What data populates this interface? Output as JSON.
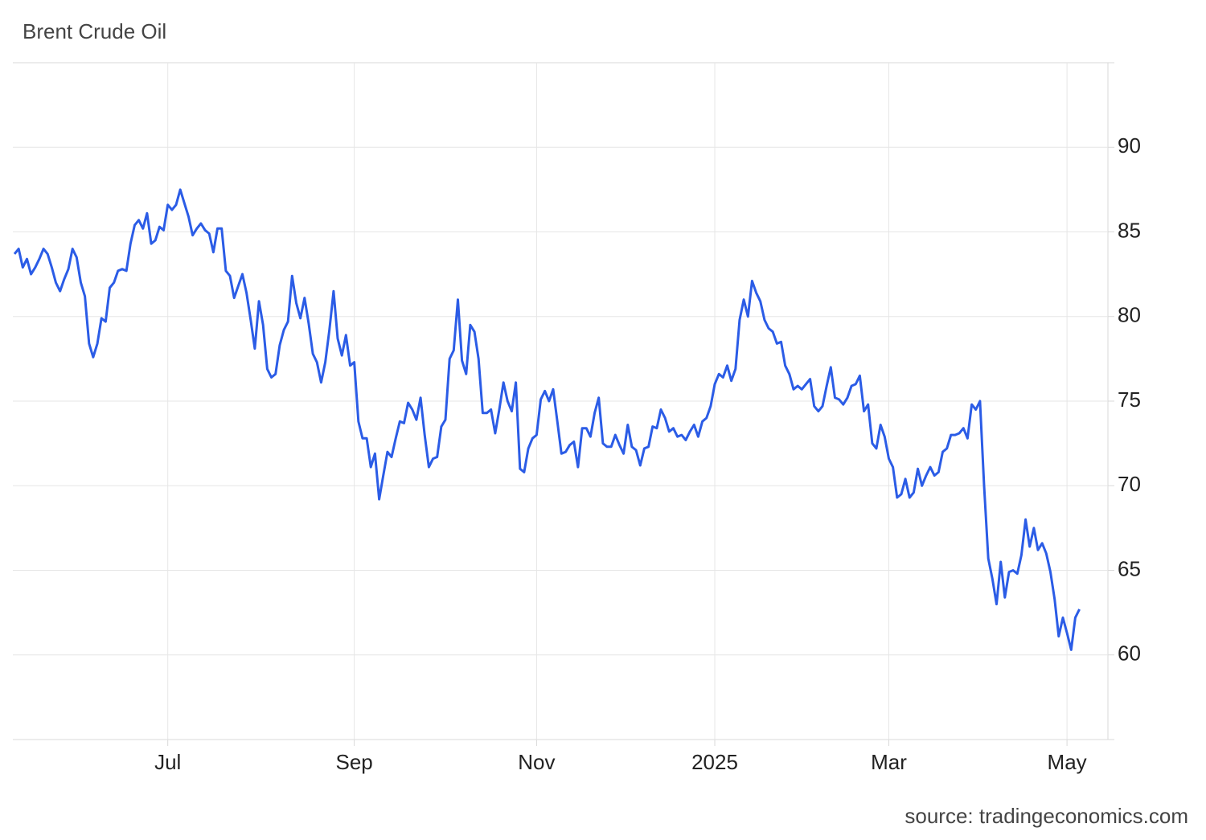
{
  "chart_data": {
    "type": "line",
    "title": "Brent Crude Oil",
    "source": "source: tradingeconomics.com",
    "color": "#2b5ce6",
    "grid": true,
    "ylim": [
      55,
      95
    ],
    "yticks": [
      60,
      65,
      70,
      75,
      80,
      85,
      90
    ],
    "categories": [
      null,
      null,
      null,
      null,
      null,
      null,
      null,
      null,
      null,
      null,
      null,
      null,
      null,
      null,
      null,
      null,
      null,
      null,
      null,
      null,
      null,
      null,
      null,
      null,
      null,
      null,
      null,
      null,
      null,
      null,
      null,
      null,
      null,
      null,
      null,
      null,
      null,
      "Jul",
      null,
      null,
      null,
      null,
      null,
      null,
      null,
      null,
      null,
      null,
      null,
      null,
      null,
      null,
      null,
      null,
      null,
      null,
      null,
      null,
      null,
      null,
      null,
      null,
      null,
      null,
      null,
      null,
      null,
      null,
      null,
      null,
      null,
      null,
      null,
      null,
      null,
      null,
      null,
      null,
      null,
      null,
      null,
      null,
      "Sep",
      null,
      null,
      null,
      null,
      null,
      null,
      null,
      null,
      null,
      null,
      null,
      null,
      null,
      null,
      null,
      null,
      null,
      null,
      null,
      null,
      null,
      null,
      null,
      null,
      null,
      null,
      null,
      null,
      null,
      null,
      null,
      null,
      null,
      null,
      null,
      null,
      null,
      null,
      null,
      null,
      null,
      null,
      null,
      "Nov",
      null,
      null,
      null,
      null,
      null,
      null,
      null,
      null,
      null,
      null,
      null,
      null,
      null,
      null,
      null,
      null,
      null,
      null,
      null,
      null,
      null,
      null,
      null,
      null,
      null,
      null,
      null,
      null,
      null,
      null,
      null,
      null,
      null,
      null,
      null,
      null,
      null,
      null,
      null,
      null,
      null,
      null,
      "2025",
      null,
      null,
      null,
      null,
      null,
      null,
      null,
      null,
      null,
      null,
      null,
      null,
      null,
      null,
      null,
      null,
      null,
      null,
      null,
      null,
      null,
      null,
      null,
      null,
      null,
      null,
      null,
      null,
      null,
      null,
      null,
      null,
      null,
      null,
      null,
      null,
      null,
      null,
      null,
      null,
      null,
      "Mar",
      null,
      null,
      null,
      null,
      null,
      null,
      null,
      null,
      null,
      null,
      null,
      null,
      null,
      null,
      null,
      null,
      null,
      null,
      null,
      null,
      null,
      null,
      null,
      null,
      null,
      null,
      null,
      null,
      null,
      null,
      null,
      null,
      null,
      null,
      null,
      null,
      null,
      null,
      null,
      null,
      null,
      null,
      "May",
      null,
      null,
      null
    ],
    "values": [
      83.7,
      84.0,
      82.9,
      83.4,
      82.5,
      82.9,
      83.4,
      84.0,
      83.7,
      82.9,
      82.0,
      81.5,
      82.2,
      82.8,
      84.0,
      83.5,
      82.0,
      81.2,
      78.4,
      77.6,
      78.4,
      79.9,
      79.7,
      81.7,
      82.0,
      82.7,
      82.8,
      82.7,
      84.3,
      85.4,
      85.7,
      85.2,
      86.1,
      84.3,
      84.5,
      85.3,
      85.1,
      86.6,
      86.3,
      86.6,
      87.5,
      86.7,
      85.9,
      84.8,
      85.2,
      85.5,
      85.1,
      84.9,
      83.8,
      85.2,
      85.2,
      82.7,
      82.4,
      81.1,
      81.8,
      82.5,
      81.4,
      79.8,
      78.1,
      80.9,
      79.5,
      76.9,
      76.4,
      76.6,
      78.3,
      79.2,
      79.7,
      82.4,
      80.8,
      79.9,
      81.1,
      79.6,
      77.8,
      77.3,
      76.1,
      77.3,
      79.2,
      81.5,
      78.7,
      77.7,
      78.9,
      77.1,
      77.3,
      73.8,
      72.8,
      72.8,
      71.1,
      71.9,
      69.2,
      70.6,
      72.0,
      71.7,
      72.8,
      73.8,
      73.7,
      74.9,
      74.5,
      73.9,
      75.2,
      73.0,
      71.1,
      71.6,
      71.7,
      73.5,
      73.9,
      77.5,
      78.0,
      81.0,
      77.4,
      76.6,
      79.5,
      79.1,
      77.5,
      74.3,
      74.3,
      74.5,
      73.1,
      74.5,
      76.1,
      75.0,
      74.4,
      76.1,
      71.0,
      70.8,
      72.2,
      72.8,
      73.0,
      75.1,
      75.6,
      75.0,
      75.7,
      73.8,
      71.9,
      72.0,
      72.4,
      72.6,
      71.1,
      73.4,
      73.4,
      72.9,
      74.3,
      75.2,
      72.5,
      72.3,
      72.3,
      73.0,
      72.4,
      71.9,
      73.6,
      72.3,
      72.1,
      71.2,
      72.2,
      72.3,
      73.5,
      73.4,
      74.5,
      74.0,
      73.2,
      73.4,
      72.9,
      73.0,
      72.7,
      73.2,
      73.6,
      72.9,
      73.8,
      74.0,
      74.7,
      76.0,
      76.6,
      76.4,
      77.1,
      76.2,
      76.9,
      79.8,
      81.0,
      80.0,
      82.1,
      81.4,
      80.9,
      79.8,
      79.3,
      79.1,
      78.4,
      78.5,
      77.1,
      76.6,
      75.7,
      75.9,
      75.7,
      76.0,
      76.3,
      74.7,
      74.4,
      74.7,
      75.9,
      77.0,
      75.2,
      75.1,
      74.8,
      75.2,
      75.9,
      76.0,
      76.5,
      74.4,
      74.8,
      72.5,
      72.2,
      73.6,
      72.9,
      71.6,
      71.1,
      69.3,
      69.5,
      70.4,
      69.3,
      69.6,
      71.0,
      70.0,
      70.6,
      71.1,
      70.6,
      70.8,
      72.0,
      72.2,
      73.0,
      73.0,
      73.1,
      73.4,
      72.8,
      74.8,
      74.5,
      75.0,
      70.0,
      65.7,
      64.5,
      63.0,
      65.5,
      63.4,
      64.9,
      65.0,
      64.8,
      65.9,
      68.0,
      66.4,
      67.5,
      66.2,
      66.6,
      66.0,
      64.9,
      63.3,
      61.1,
      62.2,
      61.3,
      60.3,
      62.2,
      62.7
    ]
  }
}
